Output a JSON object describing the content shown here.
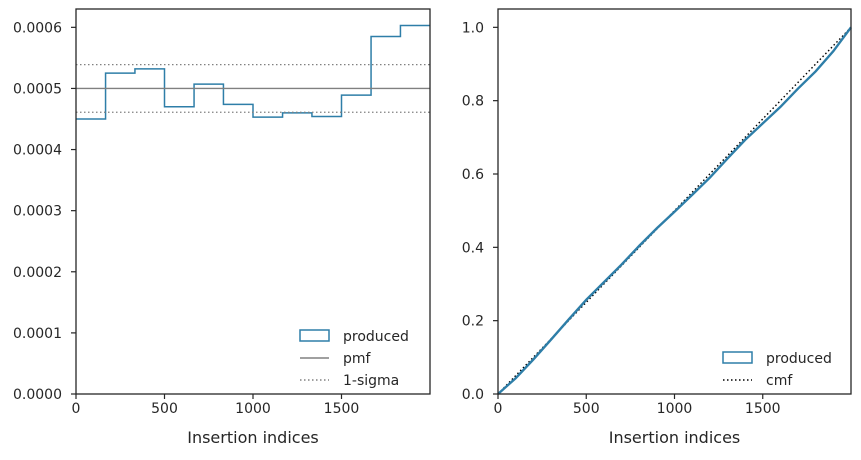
{
  "chart_data": [
    {
      "type": "step",
      "xlabel": "Insertion indices",
      "xlim": [
        0,
        2000
      ],
      "ylim": [
        0,
        0.00063
      ],
      "xticks": [
        0,
        500,
        1000,
        1500
      ],
      "xtick_labels": [
        "0",
        "500",
        "1000",
        "1500"
      ],
      "yticks": [
        0,
        0.0001,
        0.0002,
        0.0003,
        0.0004,
        0.0005,
        0.0006
      ],
      "ytick_labels": [
        "0.0000",
        "0.0001",
        "0.0002",
        "0.0003",
        "0.0004",
        "0.0005",
        "0.0006"
      ],
      "bin_edges": [
        0,
        167,
        333,
        500,
        667,
        833,
        1000,
        1167,
        1333,
        1500,
        1667,
        1833,
        2000
      ],
      "series": [
        {
          "name": "produced",
          "style": "step",
          "color": "#2e7ea8",
          "values": [
            0.00045,
            0.000525,
            0.000532,
            0.00047,
            0.000507,
            0.000474,
            0.000453,
            0.00046,
            0.000454,
            0.000489,
            0.000585,
            0.000603
          ]
        },
        {
          "name": "pmf",
          "style": "solid",
          "color": "#808080",
          "y": 0.0005
        },
        {
          "name": "1-sigma",
          "style": "dotted",
          "color": "#808080",
          "y_values": [
            0.000461,
            0.000539
          ]
        }
      ],
      "legend": {
        "position": "lower right",
        "entries": [
          "produced",
          "pmf",
          "1-sigma"
        ]
      }
    },
    {
      "type": "line",
      "xlabel": "Insertion indices",
      "xlim": [
        0,
        2000
      ],
      "ylim": [
        0,
        1.05
      ],
      "xticks": [
        0,
        500,
        1000,
        1500
      ],
      "xtick_labels": [
        "0",
        "500",
        "1000",
        "1500"
      ],
      "yticks": [
        0,
        0.2,
        0.4,
        0.6,
        0.8,
        1.0
      ],
      "ytick_labels": [
        "0.0",
        "0.2",
        "0.4",
        "0.6",
        "0.8",
        "1.0"
      ],
      "series": [
        {
          "name": "produced",
          "style": "solid",
          "color": "#2e7ea8",
          "x": [
            0,
            100,
            200,
            300,
            400,
            500,
            600,
            700,
            800,
            900,
            1000,
            1100,
            1200,
            1300,
            1400,
            1500,
            1600,
            1700,
            1800,
            1900,
            2000
          ],
          "y": [
            0,
            0.043,
            0.094,
            0.148,
            0.203,
            0.257,
            0.305,
            0.353,
            0.404,
            0.452,
            0.497,
            0.543,
            0.59,
            0.642,
            0.693,
            0.738,
            0.783,
            0.833,
            0.88,
            0.935,
            1.0
          ]
        },
        {
          "name": "cmf",
          "style": "dotted",
          "color": "#000000",
          "x": [
            0,
            2000
          ],
          "y": [
            0,
            1.0
          ]
        }
      ],
      "legend": {
        "position": "lower right",
        "entries": [
          "produced",
          "cmf"
        ]
      }
    }
  ]
}
